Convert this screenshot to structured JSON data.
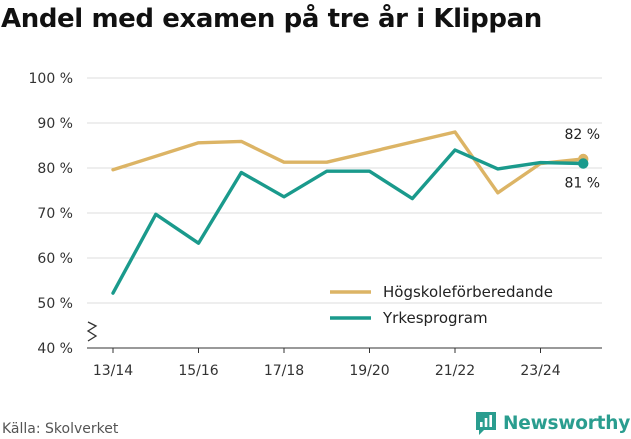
{
  "chart_data": {
    "type": "line",
    "title": "Andel med examen på tre år i Klippan",
    "xlabel": "",
    "ylabel": "",
    "ylim": [
      40,
      100
    ],
    "y_ticks": [
      40,
      50,
      60,
      70,
      80,
      90,
      100
    ],
    "y_tick_labels": [
      "40 %",
      "50 %",
      "60 %",
      "70 %",
      "80 %",
      "90 %",
      "100 %"
    ],
    "x": [
      "13/14",
      "14/15",
      "15/16",
      "16/17",
      "17/18",
      "18/19",
      "19/20",
      "20/21",
      "21/22",
      "22/23",
      "23/24",
      "24/25"
    ],
    "x_tick_labels": [
      "13/14",
      "15/16",
      "17/18",
      "19/20",
      "21/22",
      "23/24"
    ],
    "axis_break": true,
    "grid": true,
    "legend_position": "bottom-right",
    "series": [
      {
        "name": "Högskoleförberedande",
        "color": "#dcb465",
        "values": [
          79.6,
          null,
          85.6,
          85.9,
          81.3,
          81.3,
          null,
          null,
          88.0,
          74.5,
          81.0,
          82.0
        ],
        "end_label": "82 %"
      },
      {
        "name": "Yrkesprogram",
        "color": "#1a9a8c",
        "values": [
          52.2,
          69.7,
          63.3,
          79.0,
          73.6,
          79.3,
          79.3,
          73.2,
          84.0,
          79.8,
          81.2,
          81.0
        ],
        "end_label": "81 %"
      }
    ]
  },
  "footer": {
    "source": "Källa: Skolverket",
    "brand": "Newsworthy",
    "brand_icon": "newsworthy-logo-icon"
  }
}
